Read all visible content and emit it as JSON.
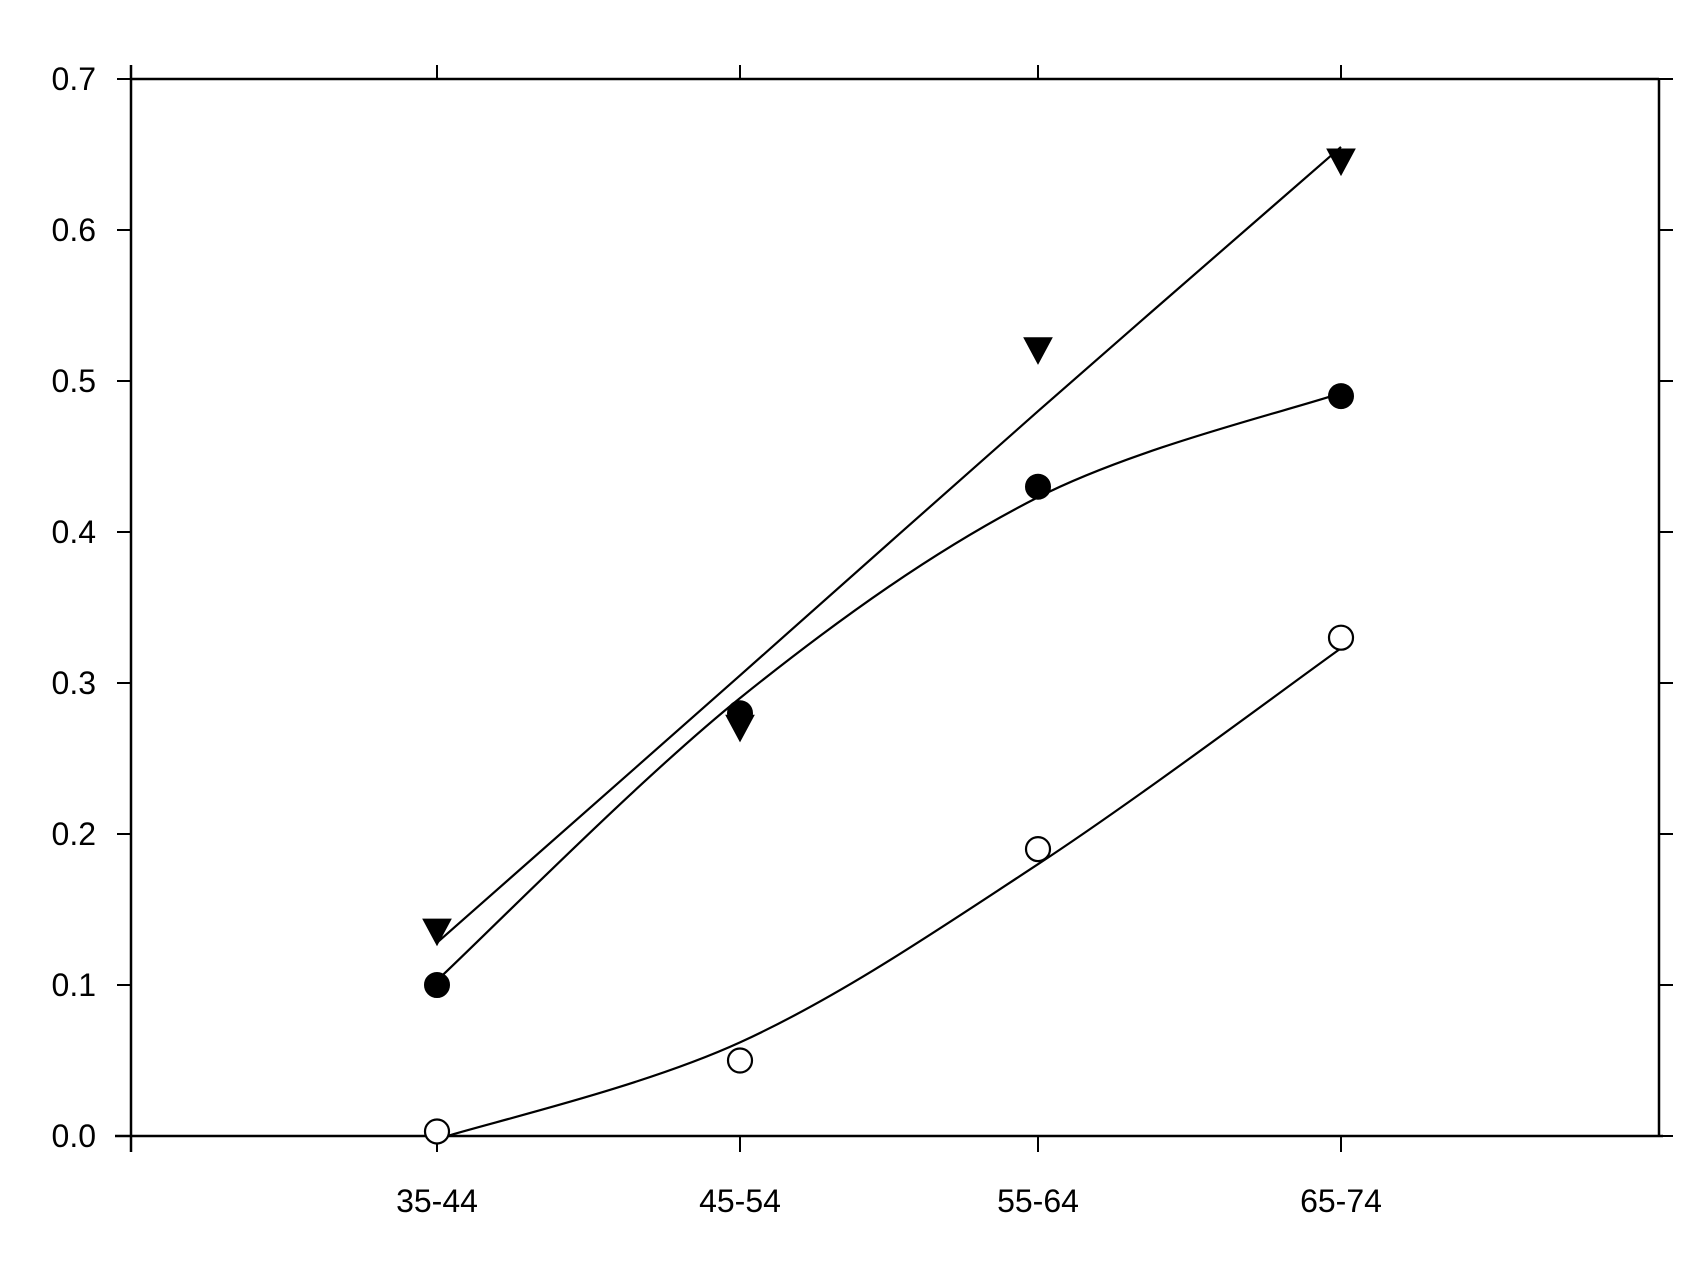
{
  "chart_data": {
    "type": "scatter",
    "title": "",
    "xlabel": "",
    "ylabel": "",
    "categories": [
      "35-44",
      "45-54",
      "55-64",
      "65-74"
    ],
    "ylim": [
      0,
      0.7
    ],
    "yticks": [
      "0.0",
      "0.1",
      "0.2",
      "0.3",
      "0.4",
      "0.5",
      "0.6",
      "0.7"
    ],
    "grid": false,
    "legend": "none",
    "series": [
      {
        "marker": "triangle-down-filled",
        "values": [
          0.135,
          0.27,
          0.52,
          0.645
        ],
        "fit": [
          0.128,
          0.305,
          0.48,
          0.655
        ]
      },
      {
        "marker": "circle-filled",
        "values": [
          0.1,
          0.28,
          0.43,
          0.49
        ],
        "fit": [
          0.103,
          0.29,
          0.423,
          0.492
        ]
      },
      {
        "marker": "circle-open",
        "values": [
          0.003,
          0.05,
          0.19,
          0.33
        ],
        "fit": [
          -0.002,
          0.062,
          0.18,
          0.323
        ]
      }
    ]
  }
}
